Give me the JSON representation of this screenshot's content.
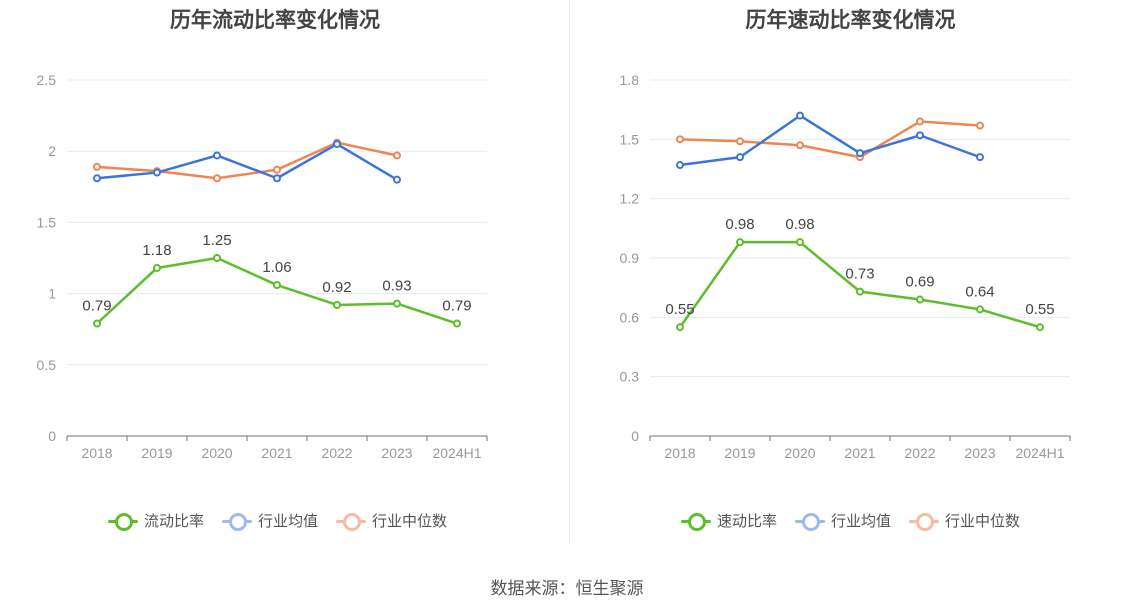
{
  "source": "数据来源：恒生聚源",
  "colors": {
    "main": "#5dbd2b",
    "avg": "#3b74dc",
    "median": "#ef8554",
    "axis": "#999999",
    "grid": "#e6e9ef"
  },
  "charts": [
    {
      "title": "历年流动比率变化情况",
      "legend": [
        "流动比率",
        "行业均值",
        "行业中位数"
      ]
    },
    {
      "title": "历年速动比率变化情况",
      "legend": [
        "速动比率",
        "行业均值",
        "行业中位数"
      ]
    }
  ],
  "chart_data": [
    {
      "type": "line",
      "title": "历年流动比率变化情况",
      "categories": [
        "2018",
        "2019",
        "2020",
        "2021",
        "2022",
        "2023",
        "2024H1"
      ],
      "ylim": [
        0,
        2.5
      ],
      "yticks": [
        "0",
        "0.5",
        "1",
        "1.5",
        "2",
        "2.5"
      ],
      "ytick_values": [
        0,
        0.5,
        1,
        1.5,
        2,
        2.5
      ],
      "grid": true,
      "legend_position": "bottom",
      "series": [
        {
          "name": "流动比率",
          "values": [
            0.79,
            1.18,
            1.25,
            1.06,
            0.92,
            0.93,
            0.79
          ],
          "labels": [
            "0.79",
            "1.18",
            "1.25",
            "1.06",
            "0.92",
            "0.93",
            "0.79"
          ]
        },
        {
          "name": "行业均值",
          "values": [
            1.81,
            1.85,
            1.97,
            1.81,
            2.05,
            1.8,
            null
          ]
        },
        {
          "name": "行业中位数",
          "values": [
            1.89,
            1.86,
            1.81,
            1.87,
            2.06,
            1.97,
            null
          ]
        }
      ]
    },
    {
      "type": "line",
      "title": "历年速动比率变化情况",
      "categories": [
        "2018",
        "2019",
        "2020",
        "2021",
        "2022",
        "2023",
        "2024H1"
      ],
      "ylim": [
        0,
        1.8
      ],
      "yticks": [
        "0",
        "0.3",
        "0.6",
        "0.9",
        "1.2",
        "1.5",
        "1.8"
      ],
      "ytick_values": [
        0,
        0.3,
        0.6,
        0.9,
        1.2,
        1.5,
        1.8
      ],
      "grid": true,
      "legend_position": "bottom",
      "series": [
        {
          "name": "速动比率",
          "values": [
            0.55,
            0.98,
            0.98,
            0.73,
            0.69,
            0.64,
            0.55
          ],
          "labels": [
            "0.55",
            "0.98",
            "0.98",
            "0.73",
            "0.69",
            "0.64",
            "0.55"
          ]
        },
        {
          "name": "行业均值",
          "values": [
            1.37,
            1.41,
            1.62,
            1.43,
            1.52,
            1.41,
            null
          ]
        },
        {
          "name": "行业中位数",
          "values": [
            1.5,
            1.49,
            1.47,
            1.41,
            1.59,
            1.57,
            null
          ]
        }
      ]
    }
  ]
}
